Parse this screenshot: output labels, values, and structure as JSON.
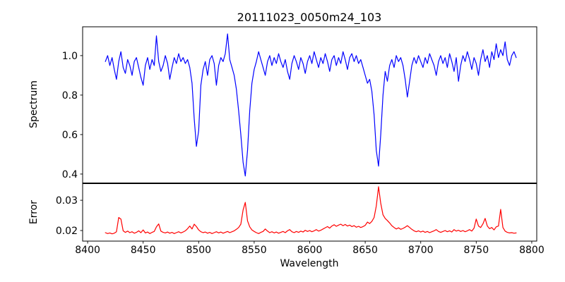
{
  "figure": {
    "title": "20111023_0050m24_103",
    "background": "#ffffff",
    "axis_color": "#000000"
  },
  "chart_data": {
    "type": "line",
    "title": "20111023_0050m24_103",
    "xlabel": "Wavelength",
    "xlim": [
      8395.5,
      8804.5
    ],
    "xticks": [
      8400,
      8450,
      8500,
      8550,
      8600,
      8650,
      8700,
      8750,
      8800
    ],
    "xtick_labels": [
      "8400",
      "8450",
      "8500",
      "8550",
      "8600",
      "8650",
      "8700",
      "8750",
      "8800"
    ],
    "x_start": 8416,
    "x_step": 2,
    "grid": false,
    "legend": "none",
    "panels": [
      {
        "name": "spectrum",
        "ylabel": "Spectrum",
        "color": "#0000ff",
        "ylim": [
          0.355,
          1.146
        ],
        "yticks": [
          0.4,
          0.6,
          0.8,
          1.0
        ],
        "ytick_labels": [
          "0.4",
          "0.6",
          "0.8",
          "1.0"
        ],
        "features": "continuum near 1.0 with noise; absorption lines at 8498 (min 0.54), 8542 (min 0.39), 8662 (min 0.44), 8688 (min 0.79); upward spikes near 8462, 8526, 8776",
        "values": [
          0.97,
          1.0,
          0.95,
          0.99,
          0.93,
          0.88,
          0.97,
          1.02,
          0.94,
          0.91,
          0.98,
          0.95,
          0.9,
          0.97,
          0.99,
          0.94,
          0.89,
          0.85,
          0.95,
          0.99,
          0.93,
          0.98,
          0.95,
          1.1,
          0.97,
          0.92,
          0.95,
          1.0,
          0.96,
          0.88,
          0.94,
          0.99,
          0.96,
          1.01,
          0.97,
          0.99,
          0.96,
          0.98,
          0.94,
          0.86,
          0.68,
          0.54,
          0.62,
          0.85,
          0.93,
          0.97,
          0.9,
          0.98,
          1.0,
          0.96,
          0.85,
          0.95,
          0.99,
          0.97,
          1.01,
          1.11,
          0.98,
          0.94,
          0.9,
          0.83,
          0.72,
          0.6,
          0.46,
          0.39,
          0.52,
          0.72,
          0.86,
          0.93,
          0.97,
          1.02,
          0.98,
          0.94,
          0.9,
          0.97,
          1.0,
          0.95,
          0.99,
          0.96,
          1.01,
          0.97,
          0.94,
          0.98,
          0.92,
          0.88,
          0.96,
          1.0,
          0.97,
          0.93,
          0.99,
          0.96,
          0.91,
          0.97,
          1.0,
          0.96,
          1.02,
          0.98,
          0.94,
          0.99,
          0.96,
          1.01,
          0.97,
          0.92,
          0.98,
          1.0,
          0.95,
          0.99,
          0.96,
          1.02,
          0.98,
          0.93,
          0.99,
          1.01,
          0.97,
          1.0,
          0.96,
          0.98,
          0.94,
          0.9,
          0.86,
          0.88,
          0.82,
          0.7,
          0.52,
          0.44,
          0.6,
          0.8,
          0.92,
          0.87,
          0.95,
          0.98,
          0.94,
          1.0,
          0.97,
          0.99,
          0.95,
          0.88,
          0.79,
          0.87,
          0.95,
          0.99,
          0.96,
          1.0,
          0.97,
          0.94,
          0.99,
          0.96,
          1.01,
          0.98,
          0.95,
          0.9,
          0.97,
          1.0,
          0.96,
          0.99,
          0.94,
          1.01,
          0.97,
          0.92,
          0.99,
          0.87,
          0.95,
          1.0,
          0.97,
          1.02,
          0.98,
          0.93,
          0.99,
          0.96,
          0.9,
          0.98,
          1.03,
          0.97,
          1.0,
          0.94,
          1.02,
          0.98,
          1.06,
          0.99,
          1.03,
          1.0,
          1.07,
          0.98,
          0.95,
          1.0,
          1.02,
          0.99
        ]
      },
      {
        "name": "error",
        "ylabel": "Error",
        "color": "#ff0000",
        "ylim": [
          0.0165,
          0.0355
        ],
        "yticks": [
          0.02,
          0.03
        ],
        "ytick_labels": [
          "0.02",
          "0.03"
        ],
        "features": "baseline ~0.019-0.020; peaks at 8428 (0.024), 8464 (0.022), 8496 (0.022), 8542 (0.029), broad bump 8615-8650 (~0.022), 8662 (0.0345), 8750/8758 (0.024), 8772 (0.027)",
        "values": [
          0.0193,
          0.019,
          0.0192,
          0.0189,
          0.0191,
          0.0196,
          0.0243,
          0.0238,
          0.0199,
          0.0194,
          0.0198,
          0.0193,
          0.0196,
          0.0191,
          0.0194,
          0.0199,
          0.0193,
          0.0202,
          0.0192,
          0.0195,
          0.019,
          0.0194,
          0.0197,
          0.0212,
          0.0222,
          0.0198,
          0.0194,
          0.0192,
          0.0195,
          0.0191,
          0.0194,
          0.019,
          0.0193,
          0.0196,
          0.0192,
          0.0195,
          0.0199,
          0.0206,
          0.0215,
          0.0205,
          0.0221,
          0.0213,
          0.0202,
          0.0196,
          0.0193,
          0.0195,
          0.0191,
          0.0194,
          0.019,
          0.0193,
          0.0196,
          0.0192,
          0.0195,
          0.0191,
          0.0194,
          0.0197,
          0.0193,
          0.0196,
          0.0199,
          0.0204,
          0.021,
          0.0221,
          0.0268,
          0.0293,
          0.0232,
          0.0212,
          0.0202,
          0.0197,
          0.0193,
          0.019,
          0.0194,
          0.0197,
          0.0205,
          0.0198,
          0.0193,
          0.0196,
          0.0192,
          0.0195,
          0.0191,
          0.0194,
          0.0197,
          0.0193,
          0.0199,
          0.0203,
          0.0196,
          0.0193,
          0.0197,
          0.0194,
          0.0198,
          0.0195,
          0.0201,
          0.0197,
          0.02,
          0.0196,
          0.0199,
          0.0203,
          0.0198,
          0.0201,
          0.0205,
          0.0209,
          0.0213,
          0.0208,
          0.0215,
          0.0219,
          0.0214,
          0.0218,
          0.0221,
          0.0216,
          0.022,
          0.0215,
          0.0218,
          0.0213,
          0.0216,
          0.0211,
          0.0214,
          0.021,
          0.0213,
          0.0217,
          0.0228,
          0.0223,
          0.023,
          0.0243,
          0.0281,
          0.0345,
          0.029,
          0.0252,
          0.024,
          0.0233,
          0.0225,
          0.0216,
          0.021,
          0.0205,
          0.0209,
          0.0204,
          0.0207,
          0.0211,
          0.0216,
          0.021,
          0.0204,
          0.0199,
          0.0196,
          0.0199,
          0.0195,
          0.0198,
          0.0194,
          0.0197,
          0.0193,
          0.0196,
          0.0199,
          0.0203,
          0.0197,
          0.0194,
          0.0197,
          0.02,
          0.0196,
          0.0199,
          0.0195,
          0.0203,
          0.0198,
          0.0201,
          0.0197,
          0.02,
          0.0196,
          0.0199,
          0.0203,
          0.0198,
          0.0208,
          0.0238,
          0.0215,
          0.021,
          0.0222,
          0.024,
          0.0215,
          0.0206,
          0.021,
          0.0202,
          0.0212,
          0.0215,
          0.027,
          0.021,
          0.0198,
          0.0194,
          0.0192,
          0.0193,
          0.0191,
          0.0192
        ]
      }
    ]
  }
}
